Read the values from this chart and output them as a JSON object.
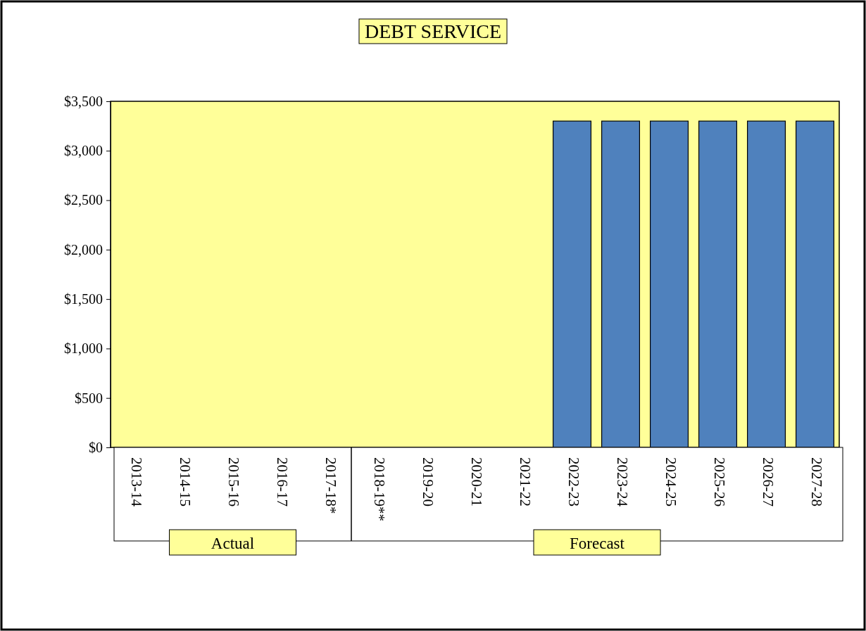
{
  "chart_data": {
    "type": "bar",
    "title": "DEBT SERVICE",
    "categories": [
      "2013-14",
      "2014-15",
      "2015-16",
      "2016-17",
      "2017-18*",
      "2018-19**",
      "2019-20",
      "2020-21",
      "2021-22",
      "2022-23",
      "2023-24",
      "2024-25",
      "2025-26",
      "2026-27",
      "2027-28"
    ],
    "values": [
      0,
      0,
      0,
      0,
      0,
      0,
      0,
      0,
      0,
      3300,
      3300,
      3300,
      3300,
      3300,
      3300
    ],
    "color": "#4f81bd",
    "ylim": [
      0,
      3500
    ],
    "yticks": [
      {
        "value": 0,
        "label": "$0"
      },
      {
        "value": 500,
        "label": "$500"
      },
      {
        "value": 1000,
        "label": "$1,000"
      },
      {
        "value": 1500,
        "label": "$1,500"
      },
      {
        "value": 2000,
        "label": "$2,000"
      },
      {
        "value": 2500,
        "label": "$2,500"
      },
      {
        "value": 3000,
        "label": "$3,000"
      },
      {
        "value": 3500,
        "label": "$3,500"
      }
    ],
    "grid": false,
    "annotations": [
      "Actual",
      "Forecast"
    ]
  }
}
